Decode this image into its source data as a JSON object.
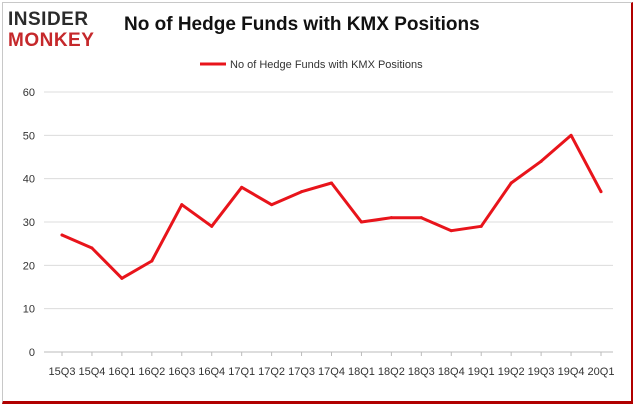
{
  "logo": {
    "line1": "INSIDER",
    "line2": "MONKEY"
  },
  "chart_data": {
    "type": "line",
    "title": "No of Hedge Funds with KMX Positions",
    "xlabel": "",
    "ylabel": "",
    "categories": [
      "15Q3",
      "15Q4",
      "16Q1",
      "16Q2",
      "16Q3",
      "16Q4",
      "17Q1",
      "17Q2",
      "17Q3",
      "17Q4",
      "18Q1",
      "18Q2",
      "18Q3",
      "18Q4",
      "19Q1",
      "19Q2",
      "19Q3",
      "19Q4",
      "20Q1"
    ],
    "series": [
      {
        "name": "No of Hedge Funds with KMX Positions",
        "values": [
          27,
          24,
          17,
          21,
          34,
          29,
          38,
          34,
          37,
          39,
          30,
          31,
          31,
          28,
          29,
          39,
          44,
          50,
          37
        ]
      }
    ],
    "ylim": [
      0,
      60
    ],
    "yticks": [
      0,
      10,
      20,
      30,
      40,
      50,
      60
    ],
    "grid": true,
    "legend_position": "top-center",
    "colors": {
      "line": "#e8141b",
      "grid": "#dcdcdc",
      "axis": "#bbbbbb"
    }
  }
}
